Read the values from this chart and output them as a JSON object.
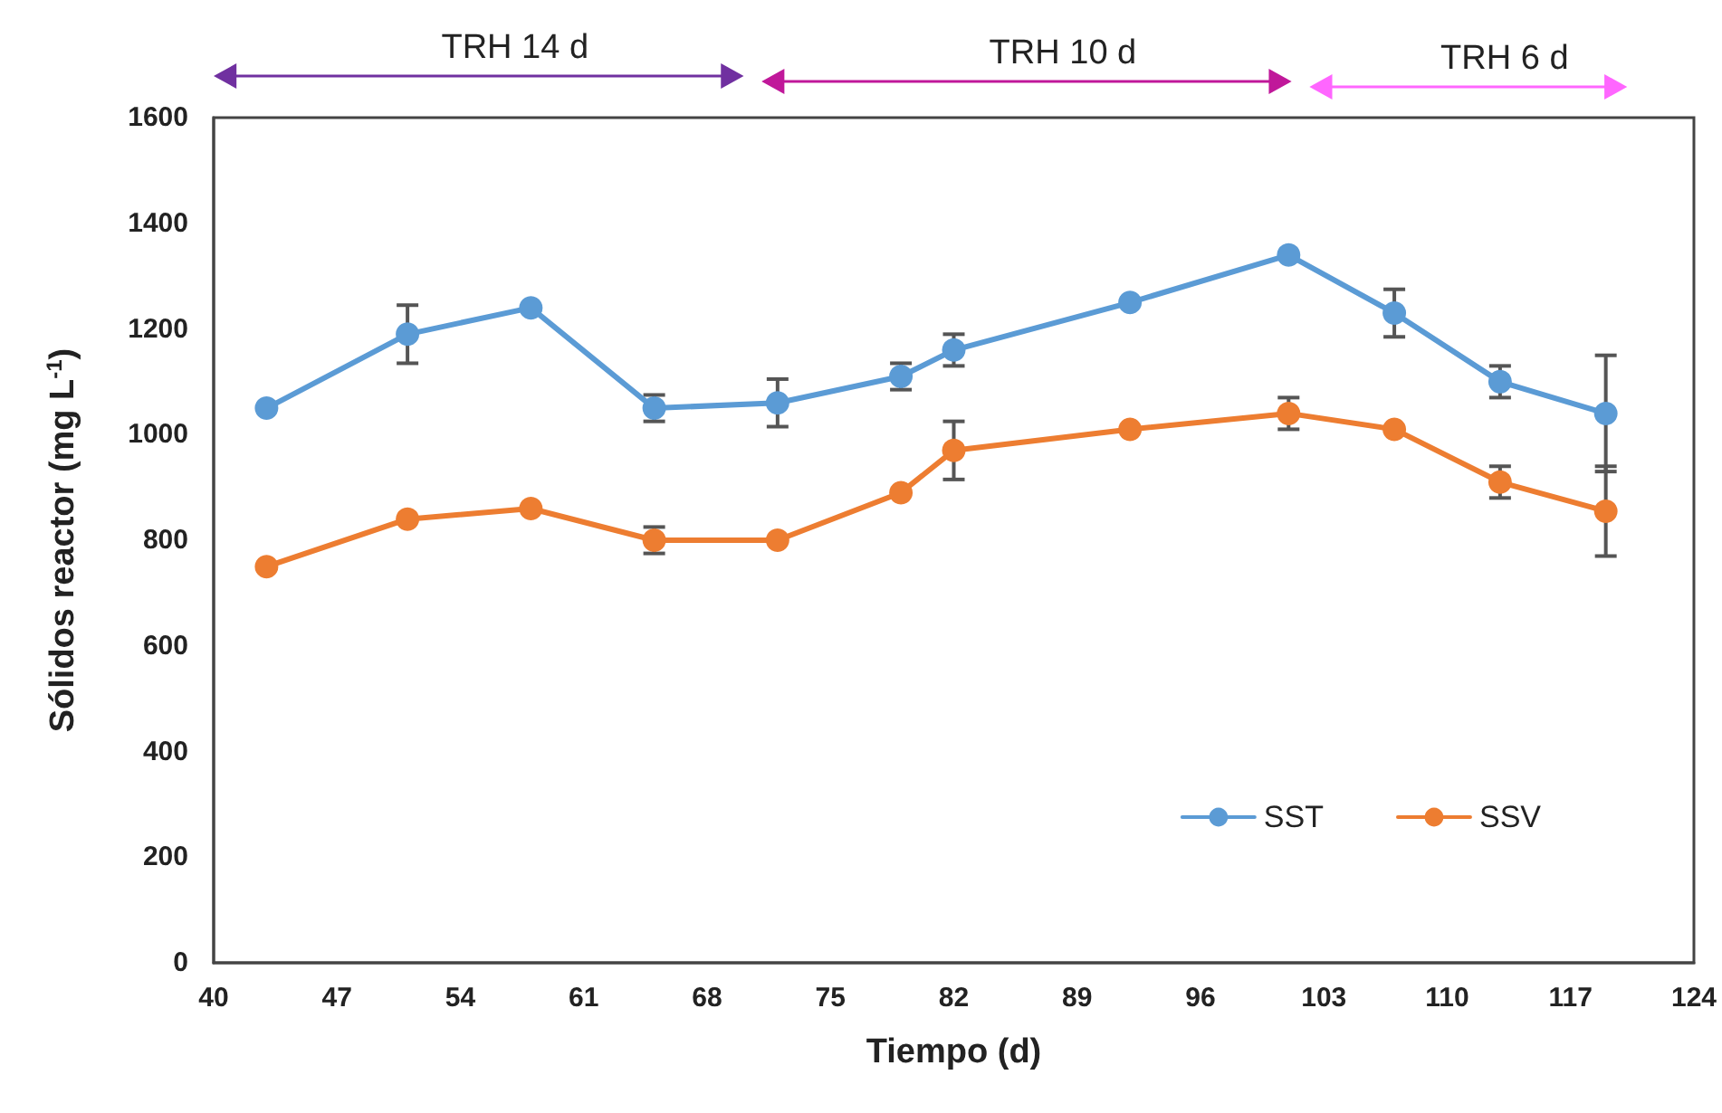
{
  "chart_data": {
    "type": "line",
    "xlabel": "Tiempo (d)",
    "ylabel": "Sólidos reactor (mg L$^{-1}$)",
    "x": [
      43,
      51,
      58,
      65,
      72,
      79,
      82,
      92,
      101,
      107,
      113,
      119
    ],
    "series": [
      {
        "name": "SST",
        "color": "#5b9bd5",
        "values": [
          1050,
          1190,
          1240,
          1050,
          1060,
          1110,
          1160,
          1250,
          1340,
          1230,
          1100,
          1040
        ],
        "errors": [
          null,
          55,
          null,
          25,
          45,
          25,
          30,
          null,
          null,
          45,
          30,
          110
        ]
      },
      {
        "name": "SSV",
        "color": "#ed7d31",
        "values": [
          750,
          840,
          860,
          800,
          800,
          890,
          970,
          1010,
          1040,
          1010,
          910,
          855
        ],
        "errors": [
          null,
          null,
          null,
          25,
          null,
          null,
          55,
          null,
          30,
          null,
          30,
          85
        ]
      }
    ],
    "xlim": [
      40,
      124
    ],
    "xticks": [
      40,
      47,
      54,
      61,
      68,
      75,
      82,
      89,
      96,
      103,
      110,
      117,
      124
    ],
    "ylim": [
      0,
      1600
    ],
    "yticks": [
      0,
      200,
      400,
      600,
      800,
      1000,
      1200,
      1400,
      1600
    ],
    "annotations": [
      "TRH 14 d",
      "TRH 10 d",
      "TRH 6 d"
    ],
    "grid": false,
    "legend": "bottom right",
    "marker": "circle",
    "line_style": "solid"
  }
}
